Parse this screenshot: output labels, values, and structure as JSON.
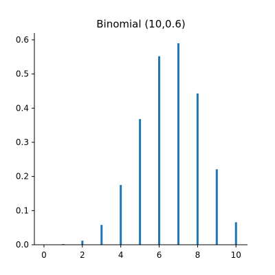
{
  "chart_data": {
    "type": "bar",
    "title": "Binomial (10,0.6)",
    "xlabel": "",
    "ylabel": "",
    "x": [
      0,
      1,
      2,
      3,
      4,
      5,
      6,
      7,
      8,
      9,
      10
    ],
    "values": [
      0.0,
      0.002,
      0.012,
      0.058,
      0.175,
      0.368,
      0.552,
      0.59,
      0.443,
      0.221,
      0.066
    ],
    "xlim": [
      -0.5,
      10.6
    ],
    "ylim": [
      0,
      0.62
    ],
    "x_ticks": [
      0,
      2,
      4,
      6,
      8,
      10
    ],
    "x_tick_labels": [
      "0",
      "2",
      "4",
      "6",
      "8",
      "10"
    ],
    "y_ticks": [
      0.0,
      0.1,
      0.2,
      0.3,
      0.4,
      0.5,
      0.6
    ],
    "y_tick_labels": [
      "0.0",
      "0.1",
      "0.2",
      "0.3",
      "0.4",
      "0.5",
      "0.6"
    ],
    "grid": false,
    "bar_color": "#1f77b4"
  }
}
